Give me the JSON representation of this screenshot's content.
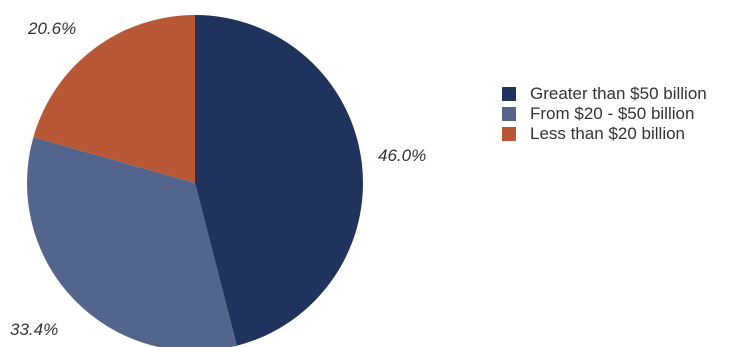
{
  "chart_data": {
    "type": "pie",
    "slices": [
      {
        "label": "Greater than $50 billion",
        "value": 46.0,
        "value_label": "46.0%",
        "color": "#1f335c"
      },
      {
        "label": "From $20 - $50 billion",
        "value": 33.4,
        "value_label": "33.4%",
        "color": "#53658d"
      },
      {
        "label": "Less than $20 billion",
        "value": 20.6,
        "value_label": "20.6%",
        "color": "#b85836"
      }
    ],
    "start_angle": "12 o'clock",
    "direction": "clockwise",
    "legend_position": "right"
  }
}
